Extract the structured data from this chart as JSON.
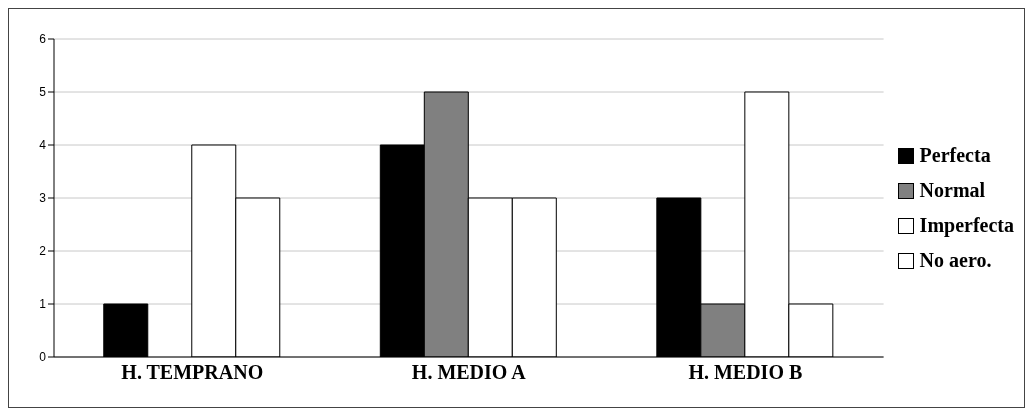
{
  "chart_data": {
    "type": "bar",
    "categories": [
      "H. TEMPRANO",
      "H. MEDIO A",
      "H. MEDIO B"
    ],
    "series": [
      {
        "name": "Perfecta",
        "color": "#000000",
        "values": [
          1,
          4,
          3
        ]
      },
      {
        "name": "Normal",
        "color": "#808080",
        "values": [
          0,
          5,
          1
        ]
      },
      {
        "name": "Imperfecta",
        "color": "#ffffff",
        "values": [
          4,
          3,
          5
        ]
      },
      {
        "name": "No aero.",
        "color": "#ffffff",
        "values": [
          3,
          3,
          1
        ]
      }
    ],
    "ylim": [
      0,
      6
    ],
    "yticks": [
      0,
      1,
      2,
      3,
      4,
      5,
      6
    ],
    "grid": "y",
    "legend": "right"
  }
}
